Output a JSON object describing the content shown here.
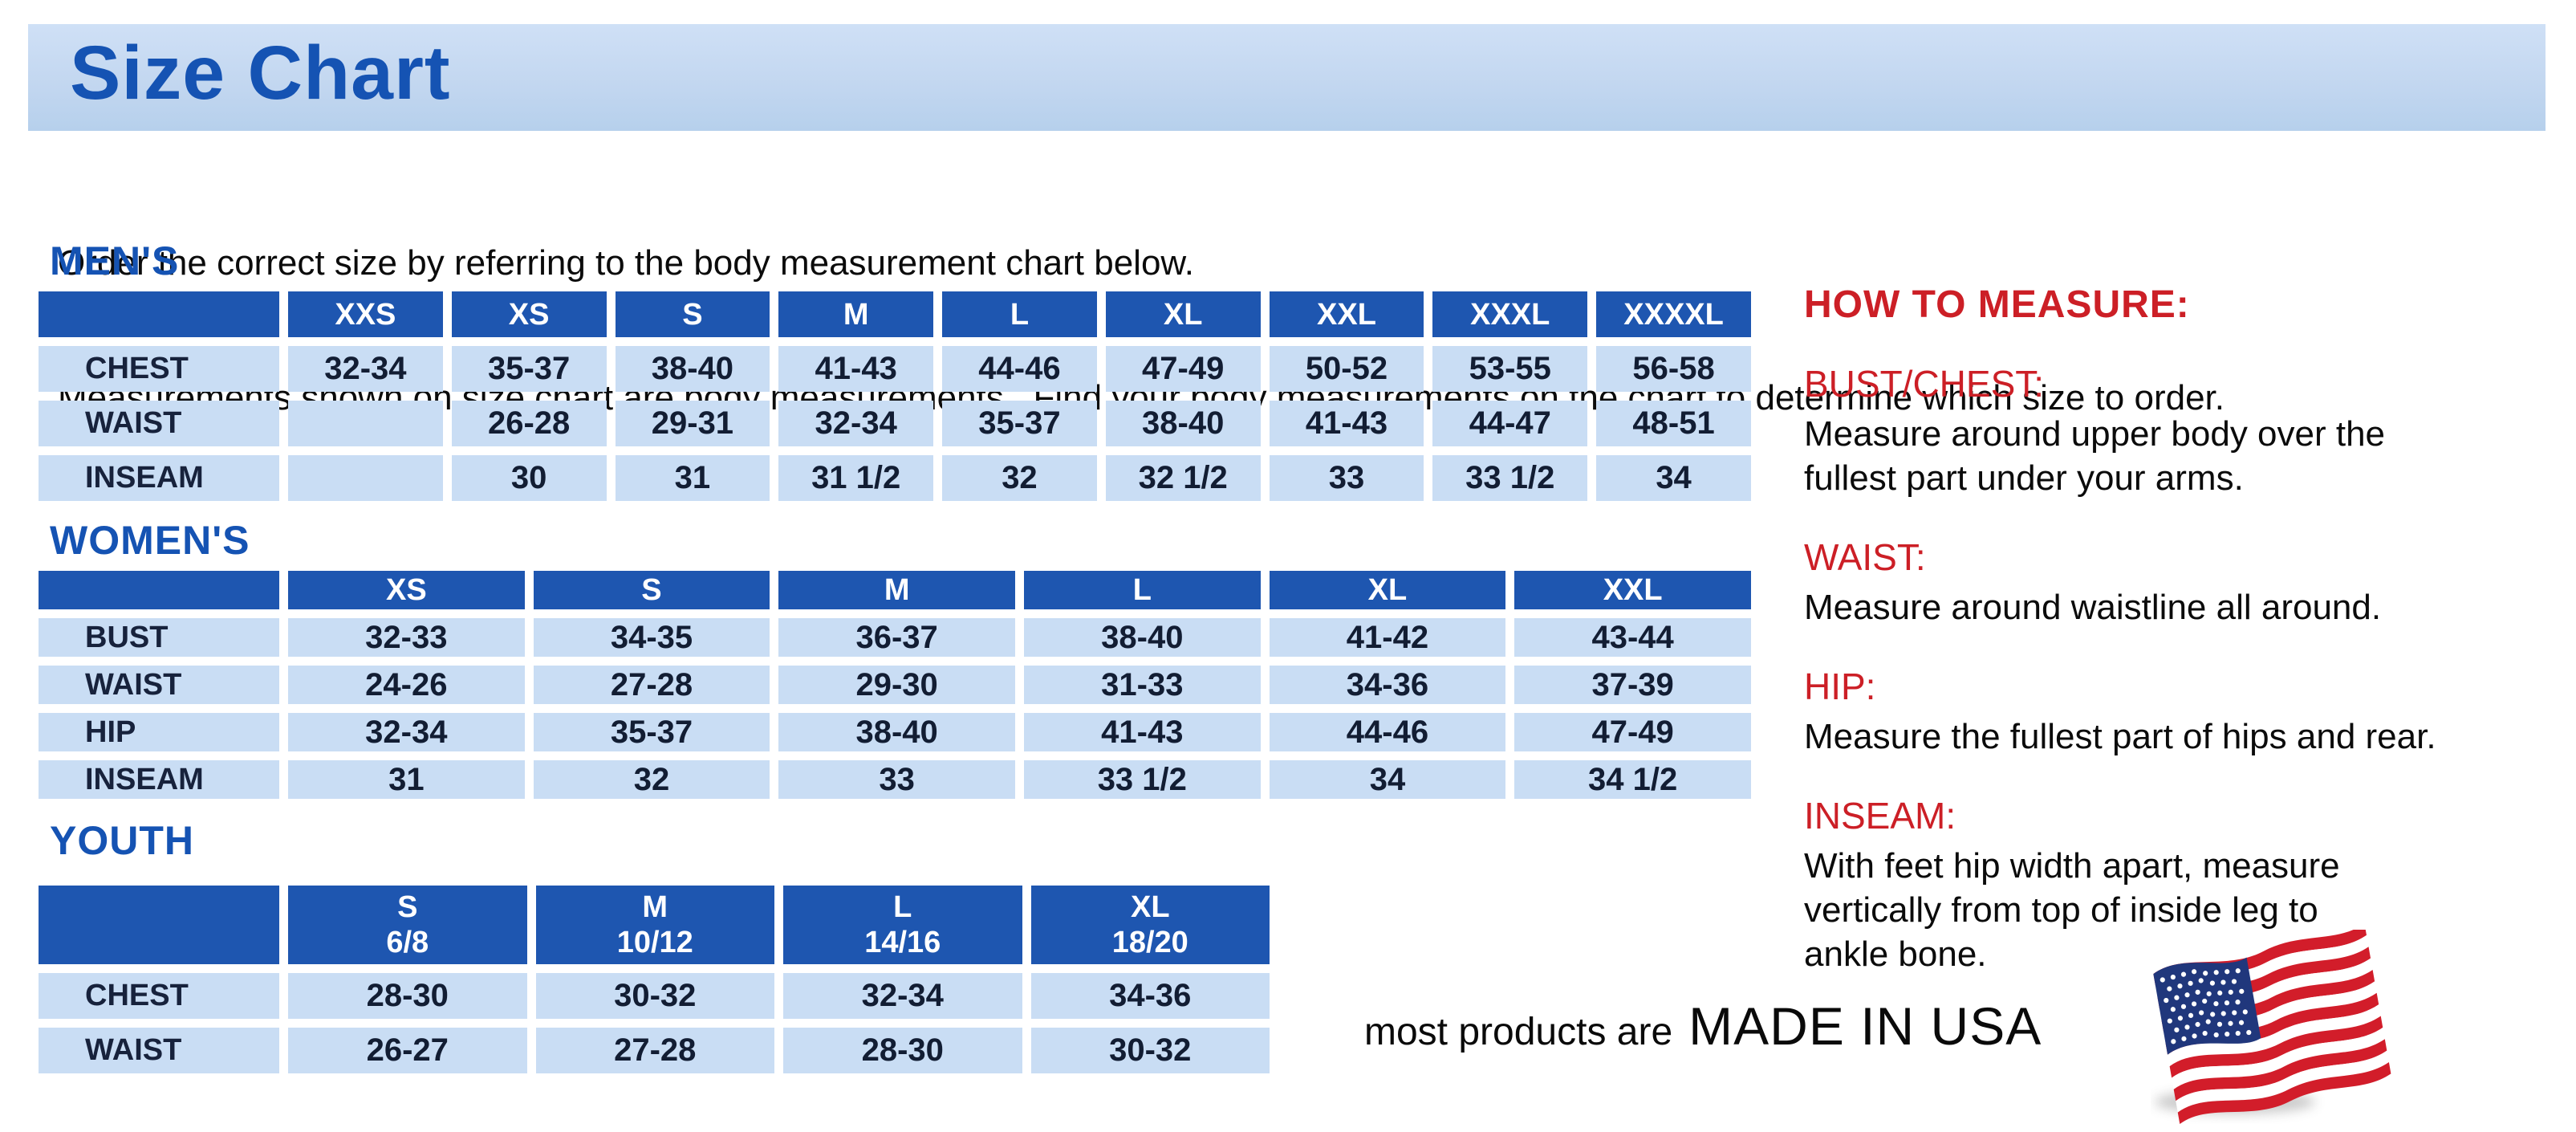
{
  "page": {
    "title": "Size Chart",
    "intro_line1": "Order the correct size by referring to the body measurement chart below.",
    "intro_line2": "Measurements shown on size chart are body measurements.  Find your body measurements on the chart to determine which size to order."
  },
  "colors": {
    "banner_bg": "#c3d7f0",
    "heading_blue": "#1553b3",
    "table_header_bg": "#1e56b0",
    "table_cell_bg": "#c9ddf4",
    "red": "#cc1f26",
    "flag_red": "#d21d2a",
    "flag_blue": "#20377c"
  },
  "tables": [
    {
      "id": "mens",
      "section_label": "MEN'S",
      "columns": [
        "",
        "XXS",
        "XS",
        "S",
        "M",
        "L",
        "XL",
        "XXL",
        "XXXL",
        "XXXXL"
      ],
      "rows": [
        {
          "label": "CHEST",
          "values": [
            "32-34",
            "35-37",
            "38-40",
            "41-43",
            "44-46",
            "47-49",
            "50-52",
            "53-55",
            "56-58"
          ]
        },
        {
          "label": "WAIST",
          "values": [
            "",
            "26-28",
            "29-31",
            "32-34",
            "35-37",
            "38-40",
            "41-43",
            "44-47",
            "48-51"
          ]
        },
        {
          "label": "INSEAM",
          "values": [
            "",
            "30",
            "31",
            "31 1/2",
            "32",
            "32 1/2",
            "33",
            "33 1/2",
            "34"
          ]
        }
      ]
    },
    {
      "id": "womens",
      "section_label": "WOMEN'S",
      "columns": [
        "",
        "XS",
        "S",
        "M",
        "L",
        "XL",
        "XXL"
      ],
      "rows": [
        {
          "label": "BUST",
          "values": [
            "32-33",
            "34-35",
            "36-37",
            "38-40",
            "41-42",
            "43-44"
          ]
        },
        {
          "label": "WAIST",
          "values": [
            "24-26",
            "27-28",
            "29-30",
            "31-33",
            "34-36",
            "37-39"
          ]
        },
        {
          "label": "HIP",
          "values": [
            "32-34",
            "35-37",
            "38-40",
            "41-43",
            "44-46",
            "47-49"
          ]
        },
        {
          "label": "INSEAM",
          "values": [
            "31",
            "32",
            "33",
            "33 1/2",
            "34",
            "34 1/2"
          ]
        }
      ]
    },
    {
      "id": "youth",
      "section_label": "YOUTH",
      "columns": [
        "",
        "S\n6/8",
        "M\n10/12",
        "L\n14/16",
        "XL\n18/20"
      ],
      "rows": [
        {
          "label": "CHEST",
          "values": [
            "28-30",
            "30-32",
            "32-34",
            "34-36"
          ]
        },
        {
          "label": "WAIST",
          "values": [
            "26-27",
            "27-28",
            "28-30",
            "30-32"
          ]
        }
      ]
    }
  ],
  "how_to_measure": {
    "title": "HOW TO MEASURE:",
    "items": [
      {
        "label": "BUST/CHEST:",
        "text": "Measure around upper body over the\nfullest part under your arms."
      },
      {
        "label": "WAIST:",
        "text": "Measure around waistline all around."
      },
      {
        "label": "HIP:",
        "text": "Measure the fullest part of hips and rear."
      },
      {
        "label": "INSEAM:",
        "text": "With feet hip width apart, measure\nvertically from top of inside leg to\nankle bone."
      }
    ]
  },
  "footer": {
    "prefix": "most products are",
    "emphasis": "MADE IN USA",
    "flag_icon": "usa-flag-icon"
  }
}
